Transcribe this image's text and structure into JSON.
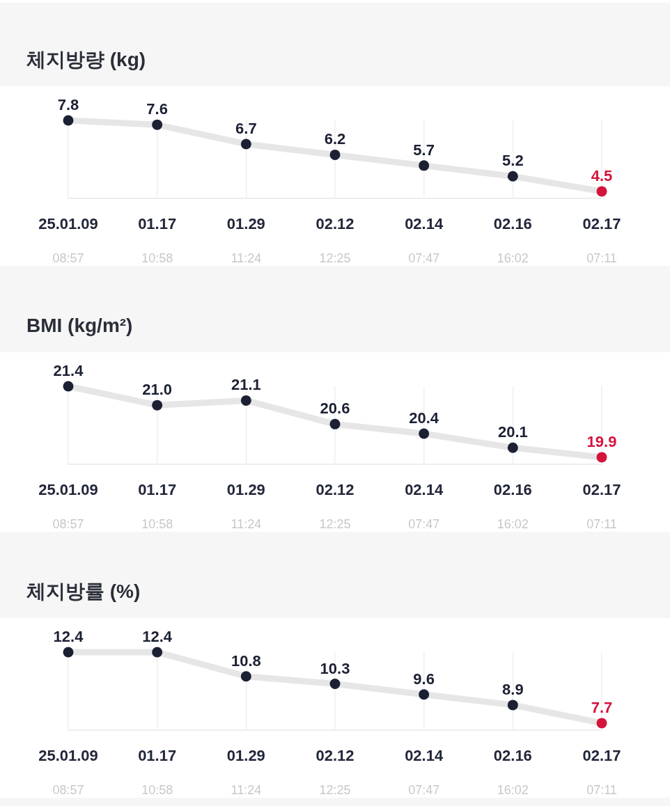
{
  "chart_data": [
    {
      "type": "line",
      "title": "체지방량 (kg)",
      "categories": [
        "25.01.09\n08:57",
        "01.17\n10:58",
        "01.29\n11:24",
        "02.12\n12:25",
        "02.14\n07:47",
        "02.16\n16:02",
        "02.17\n07:11"
      ],
      "values": [
        7.8,
        7.6,
        6.7,
        6.2,
        5.7,
        5.2,
        4.5
      ],
      "value_labels": [
        "7.8",
        "7.6",
        "6.7",
        "6.2",
        "5.7",
        "5.2",
        "4.5"
      ],
      "color": "#e6e6e6",
      "colors": [
        "#1b2033",
        "#1b2033",
        "#1b2033",
        "#1b2033",
        "#1b2033",
        "#1b2033",
        "#d3153c"
      ],
      "marker": "circle",
      "grid": "x",
      "tick_labels": "x"
    },
    {
      "type": "line",
      "title": "BMI (kg/m²)",
      "categories": [
        "25.01.09\n08:57",
        "01.17\n10:58",
        "01.29\n11:24",
        "02.12\n12:25",
        "02.14\n07:47",
        "02.16\n16:02",
        "02.17\n07:11"
      ],
      "values": [
        21.4,
        21.0,
        21.1,
        20.6,
        20.4,
        20.1,
        19.9
      ],
      "value_labels": [
        "21.4",
        "21.0",
        "21.1",
        "20.6",
        "20.4",
        "20.1",
        "19.9"
      ],
      "color": "#e6e6e6",
      "colors": [
        "#1b2033",
        "#1b2033",
        "#1b2033",
        "#1b2033",
        "#1b2033",
        "#1b2033",
        "#d3153c"
      ],
      "marker": "circle",
      "grid": "x",
      "tick_labels": "x"
    },
    {
      "type": "line",
      "title": "체지방률 (%)",
      "categories": [
        "25.01.09\n08:57",
        "01.17\n10:58",
        "01.29\n11:24",
        "02.12\n12:25",
        "02.14\n07:47",
        "02.16\n16:02",
        "02.17\n07:11"
      ],
      "values": [
        12.4,
        12.4,
        10.8,
        10.3,
        9.6,
        8.9,
        7.7
      ],
      "value_labels": [
        "12.4",
        "12.4",
        "10.8",
        "10.3",
        "9.6",
        "8.9",
        "7.7"
      ],
      "color": "#e6e6e6",
      "colors": [
        "#1b2033",
        "#1b2033",
        "#1b2033",
        "#1b2033",
        "#1b2033",
        "#1b2033",
        "#d3153c"
      ],
      "marker": "circle",
      "grid": "x",
      "tick_labels": "x"
    }
  ]
}
